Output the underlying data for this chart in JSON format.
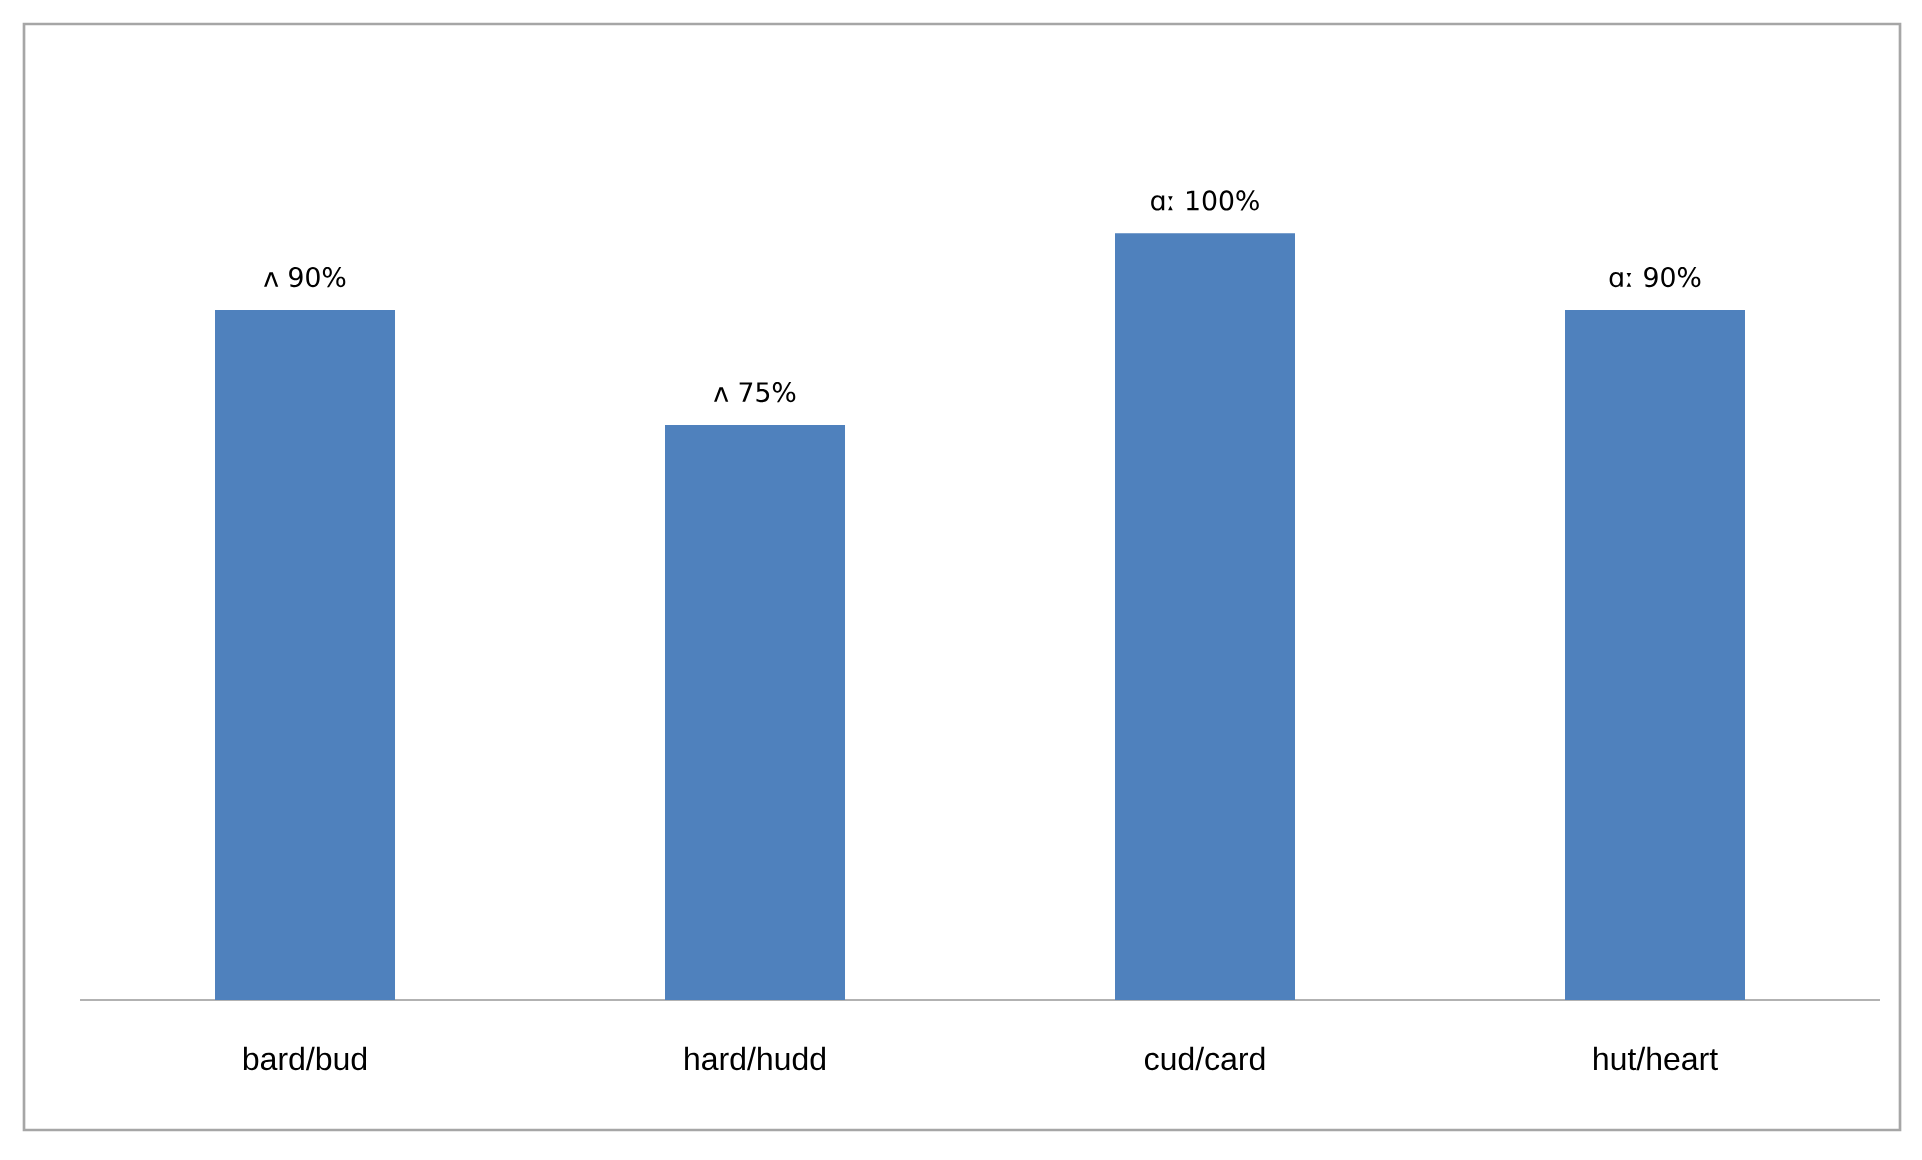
{
  "chart_data": {
    "type": "bar",
    "categories": [
      "bard/bud",
      "hard/hudd",
      "cud/card",
      "hut/heart"
    ],
    "values": [
      90,
      75,
      100,
      90
    ],
    "value_labels": [
      "ʌ  90%",
      "ʌ  75%",
      "ɑː  100%",
      "ɑː  90%"
    ],
    "color": "#4f81bd",
    "tick_labels": "x"
  }
}
